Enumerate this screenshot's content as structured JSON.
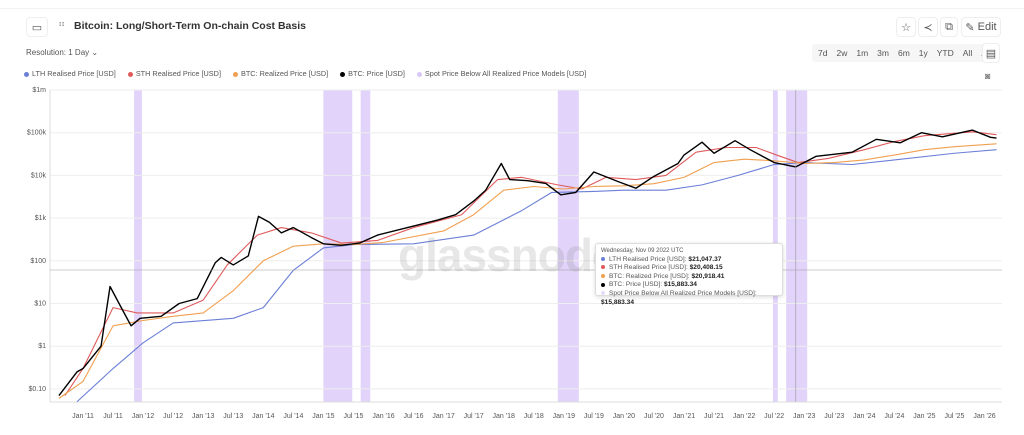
{
  "header": {
    "title": "Bitcoin: Long/Short-Term On-chain Cost Basis",
    "edit_label": "Edit",
    "resolution": "Resolution: 1 Day"
  },
  "ranges": [
    "7d",
    "2w",
    "1m",
    "3m",
    "6m",
    "1y",
    "YTD",
    "All"
  ],
  "watermark": "glassnode",
  "tooltip": {
    "date": "Wednesday, Nov 09 2022 UTC",
    "rows": [
      {
        "label": "LTH Realised Price [USD]:",
        "value": "$21,047.37",
        "color": "#6b7fd7"
      },
      {
        "label": "STH Realised Price [USD]:",
        "value": "$20,408.15",
        "color": "#e05a5a"
      },
      {
        "label": "BTC: Realized Price [USD]:",
        "value": "$20,918.41",
        "color": "#f0a050"
      },
      {
        "label": "BTC: Price [USD]:",
        "value": "$15,883.34",
        "color": "#000000"
      },
      {
        "label": "Spot Price Below All Realized Price Models [USD]:",
        "value": "$15,883.34",
        "color": "#e6dcf7"
      }
    ]
  },
  "chart_data": {
    "type": "line",
    "title": "Bitcoin: Long/Short-Term On-chain Cost Basis",
    "yscale": "log",
    "ylim": [
      0.05,
      1000000
    ],
    "yticks": [
      {
        "v": 1000000,
        "l": "$1m"
      },
      {
        "v": 100000,
        "l": "$100k"
      },
      {
        "v": 10000,
        "l": "$10k"
      },
      {
        "v": 1000,
        "l": "$1k"
      },
      {
        "v": 100,
        "l": "$100"
      },
      {
        "v": 10,
        "l": "$10"
      },
      {
        "v": 1,
        "l": "$1"
      },
      {
        "v": 0.1,
        "l": "$0.10"
      }
    ],
    "xlim": [
      2010.55,
      2026.25
    ],
    "xticks": [
      "Jan '11",
      "Jul '11",
      "Jan '12",
      "Jul '12",
      "Jan '13",
      "Jul '13",
      "Jan '14",
      "Jul '14",
      "Jan '15",
      "Jul '15",
      "Jan '16",
      "Jul '16",
      "Jan '17",
      "Jul '17",
      "Jan '18",
      "Jul '18",
      "Jan '19",
      "Jul '19",
      "Jan '20",
      "Jul '20",
      "Jan '21",
      "Jul '21",
      "Jan '22",
      "Jul '22",
      "Jan '23",
      "Jul '23",
      "Jan '24",
      "Jul '24",
      "Jan '25",
      "Jul '25",
      "Jan '26"
    ],
    "series": [
      {
        "name": "LTH Realised Price [USD]",
        "color": "#6b7fd7",
        "points": [
          [
            2010.9,
            0.05
          ],
          [
            2011.5,
            0.3
          ],
          [
            2012,
            1.2
          ],
          [
            2012.5,
            3.5
          ],
          [
            2013.5,
            4.5
          ],
          [
            2014,
            8
          ],
          [
            2014.5,
            60
          ],
          [
            2015,
            200
          ],
          [
            2015.5,
            240
          ],
          [
            2016.5,
            250
          ],
          [
            2017.5,
            400
          ],
          [
            2018.3,
            1500
          ],
          [
            2018.8,
            4000
          ],
          [
            2019.5,
            4200
          ],
          [
            2020,
            4500
          ],
          [
            2020.7,
            4500
          ],
          [
            2021.3,
            6000
          ],
          [
            2021.9,
            10000
          ],
          [
            2022.5,
            18000
          ],
          [
            2023,
            20000
          ],
          [
            2023.8,
            18000
          ],
          [
            2024.5,
            23000
          ],
          [
            2025.5,
            33000
          ],
          [
            2026.2,
            40000
          ]
        ]
      },
      {
        "name": "STH Realised Price [USD]",
        "color": "#e05a5a",
        "points": [
          [
            2010.7,
            0.07
          ],
          [
            2011,
            0.3
          ],
          [
            2011.5,
            8
          ],
          [
            2011.9,
            6
          ],
          [
            2012.5,
            6
          ],
          [
            2013,
            12
          ],
          [
            2013.4,
            80
          ],
          [
            2013.9,
            400
          ],
          [
            2014.3,
            600
          ],
          [
            2014.8,
            450
          ],
          [
            2015.3,
            260
          ],
          [
            2015.9,
            300
          ],
          [
            2016.5,
            600
          ],
          [
            2017.3,
            1200
          ],
          [
            2017.9,
            8000
          ],
          [
            2018.3,
            9000
          ],
          [
            2018.9,
            6000
          ],
          [
            2019.3,
            4800
          ],
          [
            2019.7,
            9000
          ],
          [
            2020.2,
            8000
          ],
          [
            2020.7,
            10000
          ],
          [
            2021.2,
            35000
          ],
          [
            2021.7,
            45000
          ],
          [
            2022.2,
            45000
          ],
          [
            2022.6,
            28000
          ],
          [
            2022.9,
            20000
          ],
          [
            2023.4,
            25000
          ],
          [
            2024,
            40000
          ],
          [
            2024.5,
            62000
          ],
          [
            2025,
            85000
          ],
          [
            2025.8,
            105000
          ],
          [
            2026.2,
            90000
          ]
        ]
      },
      {
        "name": "BTC: Realized Price [USD]",
        "color": "#f0a050",
        "points": [
          [
            2010.6,
            0.06
          ],
          [
            2011,
            0.15
          ],
          [
            2011.5,
            3
          ],
          [
            2012,
            4
          ],
          [
            2012.5,
            5
          ],
          [
            2013,
            6
          ],
          [
            2013.5,
            20
          ],
          [
            2014,
            100
          ],
          [
            2014.5,
            220
          ],
          [
            2015,
            250
          ],
          [
            2015.5,
            240
          ],
          [
            2016,
            270
          ],
          [
            2017,
            500
          ],
          [
            2017.5,
            1200
          ],
          [
            2018,
            4500
          ],
          [
            2018.5,
            5500
          ],
          [
            2019,
            4800
          ],
          [
            2019.5,
            5500
          ],
          [
            2020,
            5700
          ],
          [
            2020.5,
            6400
          ],
          [
            2021,
            9000
          ],
          [
            2021.5,
            20000
          ],
          [
            2022,
            24000
          ],
          [
            2022.5,
            22000
          ],
          [
            2023,
            19000
          ],
          [
            2023.5,
            20000
          ],
          [
            2024,
            23000
          ],
          [
            2024.5,
            30000
          ],
          [
            2025,
            40000
          ],
          [
            2025.5,
            47000
          ],
          [
            2026.2,
            55000
          ]
        ]
      },
      {
        "name": "BTC: Price [USD]",
        "color": "#000000",
        "points": [
          [
            2010.6,
            0.07
          ],
          [
            2010.9,
            0.25
          ],
          [
            2011,
            0.3
          ],
          [
            2011.3,
            1
          ],
          [
            2011.45,
            25
          ],
          [
            2011.6,
            10
          ],
          [
            2011.8,
            3
          ],
          [
            2011.95,
            4.5
          ],
          [
            2012.3,
            5
          ],
          [
            2012.6,
            10
          ],
          [
            2012.9,
            13
          ],
          [
            2013.2,
            90
          ],
          [
            2013.3,
            120
          ],
          [
            2013.5,
            80
          ],
          [
            2013.75,
            130
          ],
          [
            2013.92,
            1100
          ],
          [
            2014.1,
            800
          ],
          [
            2014.3,
            450
          ],
          [
            2014.5,
            600
          ],
          [
            2014.8,
            350
          ],
          [
            2015,
            250
          ],
          [
            2015.3,
            230
          ],
          [
            2015.6,
            260
          ],
          [
            2015.9,
            400
          ],
          [
            2016.4,
            600
          ],
          [
            2016.9,
            900
          ],
          [
            2017.2,
            1200
          ],
          [
            2017.5,
            2500
          ],
          [
            2017.7,
            4500
          ],
          [
            2017.96,
            19000
          ],
          [
            2018.1,
            8000
          ],
          [
            2018.4,
            7500
          ],
          [
            2018.7,
            6500
          ],
          [
            2018.95,
            3500
          ],
          [
            2019.2,
            4000
          ],
          [
            2019.5,
            12000
          ],
          [
            2019.9,
            7200
          ],
          [
            2020.2,
            5000
          ],
          [
            2020.5,
            9500
          ],
          [
            2020.9,
            19000
          ],
          [
            2021,
            30000
          ],
          [
            2021.3,
            60000
          ],
          [
            2021.5,
            33000
          ],
          [
            2021.85,
            65000
          ],
          [
            2022.1,
            40000
          ],
          [
            2022.5,
            20000
          ],
          [
            2022.86,
            15800
          ],
          [
            2023.2,
            28000
          ],
          [
            2023.8,
            35000
          ],
          [
            2024.2,
            70000
          ],
          [
            2024.6,
            58000
          ],
          [
            2024.95,
            100000
          ],
          [
            2025.3,
            80000
          ],
          [
            2025.8,
            115000
          ],
          [
            2026.1,
            78000
          ],
          [
            2026.2,
            75000
          ]
        ]
      }
    ],
    "spot_below_ranges": [
      [
        2011.85,
        2011.98
      ],
      [
        2015.0,
        2015.48
      ],
      [
        2015.62,
        2015.78
      ],
      [
        2018.9,
        2019.25
      ],
      [
        2022.48,
        2022.56
      ],
      [
        2022.7,
        2023.05
      ]
    ],
    "spot_below_name": "Spot Price Below All Realized Price Models [USD]",
    "spot_below_color": "#d9c8f7"
  }
}
